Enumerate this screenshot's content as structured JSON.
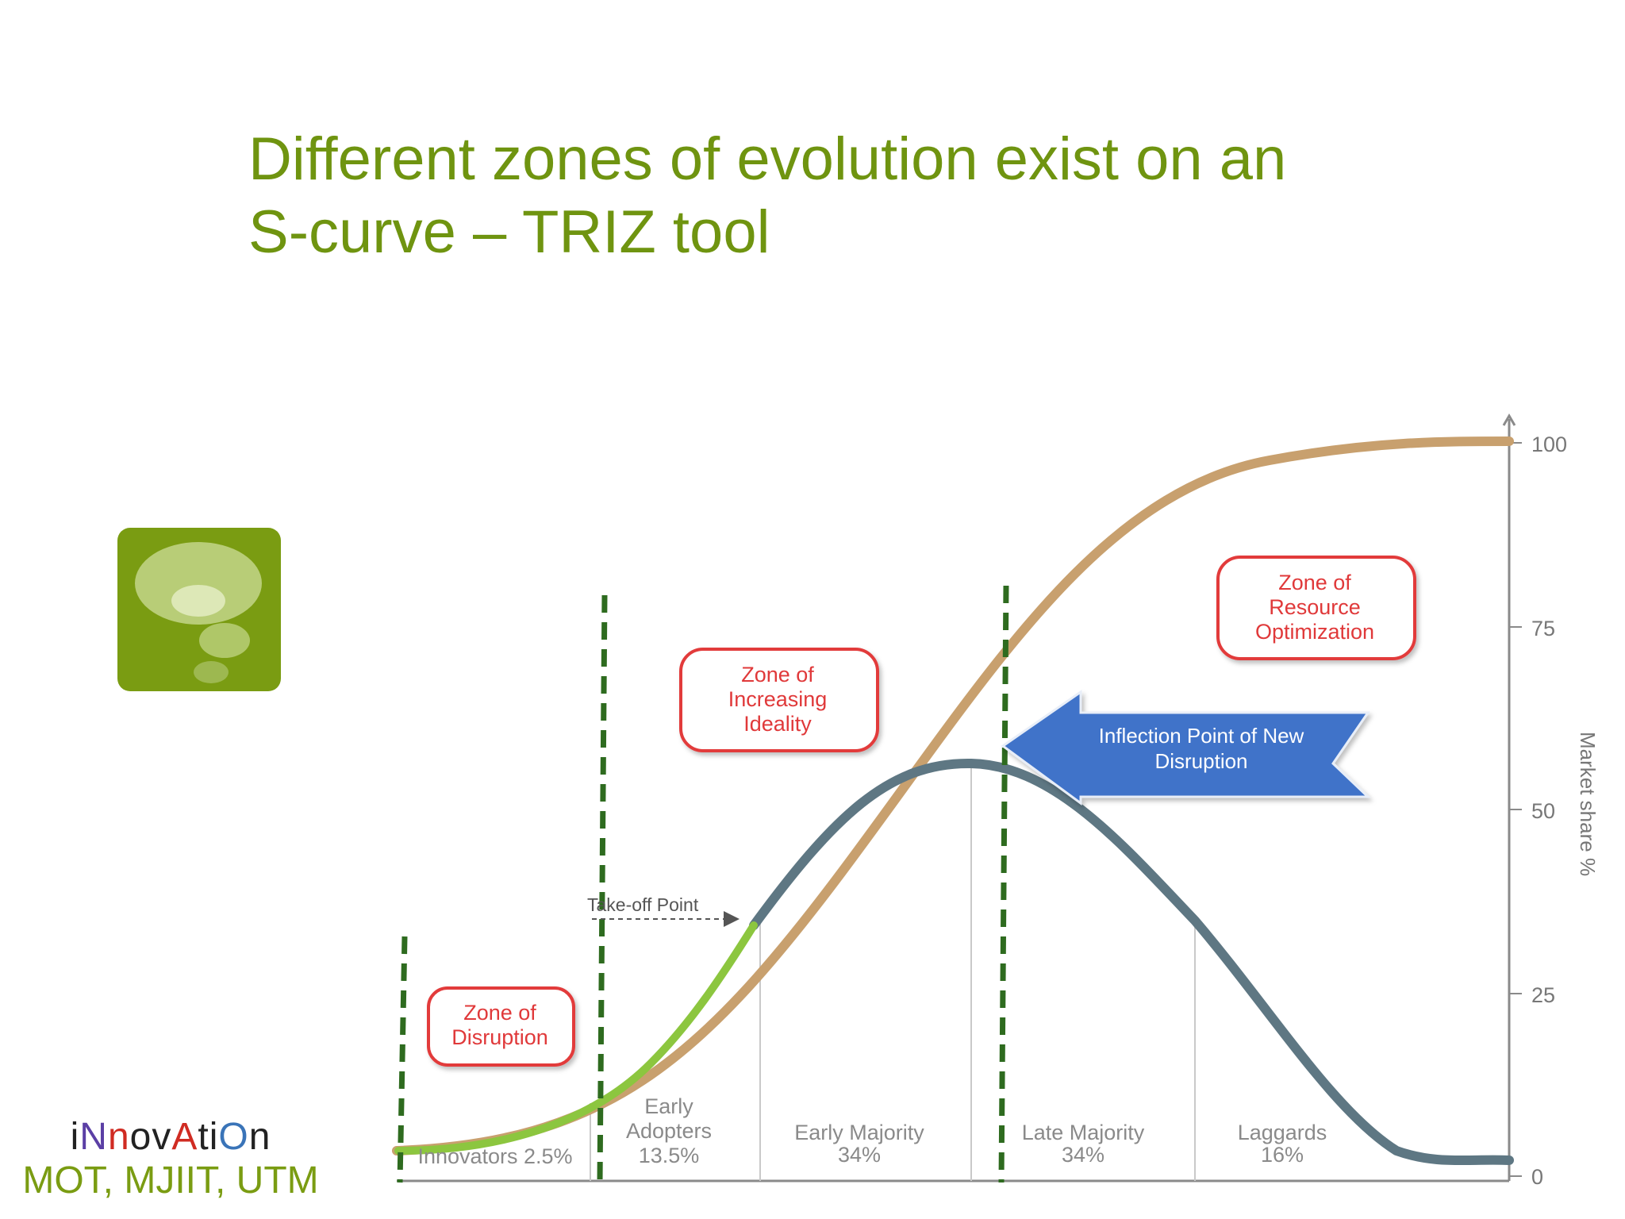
{
  "title": {
    "line1": "Different zones of evolution exist on an",
    "line2": "S-curve – TRIZ tool"
  },
  "icon": {
    "name": "thought-bubble-icon"
  },
  "branding": {
    "word": "iNnovAtiOn",
    "sub": "MOT, MJIIT, UTM"
  },
  "axis": {
    "label": "Market share %",
    "ticks": [
      "100",
      "75",
      "50",
      "25",
      "0"
    ]
  },
  "zones": {
    "disruption": [
      "Zone of",
      "Disruption"
    ],
    "ideality": [
      "Zone of",
      "Increasing",
      "Ideality"
    ],
    "resource": [
      "Zone of",
      "Resource",
      "Optimization"
    ]
  },
  "arrow": {
    "lines": [
      "Inflection Point of New",
      "Disruption"
    ]
  },
  "takeoff": "Take-off Point",
  "segments": [
    {
      "name": "Innovators 2.5%",
      "lines": [
        "Innovators 2.5%"
      ]
    },
    {
      "name": "Early Adopters",
      "lines": [
        "Early",
        "Adopters",
        "13.5%"
      ]
    },
    {
      "name": "Early Majority",
      "lines": [
        "Early Majority",
        "34%"
      ]
    },
    {
      "name": "Late Majority",
      "lines": [
        "Late Majority",
        "34%"
      ]
    },
    {
      "name": "Laggards",
      "lines": [
        "Laggards",
        "16%"
      ]
    }
  ],
  "colors": {
    "title": "#6f9410",
    "scurve": "#c8a06e",
    "bell": "#5e7783",
    "bell_highlight": "#8cc63f",
    "zone_border": "#e23b3b",
    "zone_text": "#e0393a",
    "dashed": "#2e6b1f",
    "arrow": "#3f73c9"
  }
}
